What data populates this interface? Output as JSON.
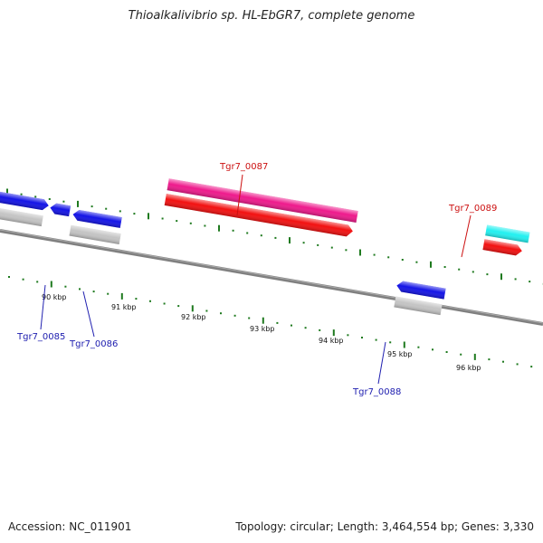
{
  "title": "Thioalkalivibrio sp. HL-EbGR7, complete genome",
  "footer": {
    "accession": "Accession: NC_011901",
    "summary": "Topology: circular; Length: 3,464,554 bp; Genes: 3,330"
  },
  "colors": {
    "backbone": "#808080",
    "tick": "#1f7a1f",
    "gene_blue": "#1414e6",
    "gene_pink": "#ee1a8c",
    "gene_red": "#f21111",
    "gene_gray": "#c4c4c4",
    "gene_cyan": "#22f0f0",
    "gene_olive": "#bdb374",
    "label_blue": "#2020b0",
    "label_red": "#cc1111"
  },
  "scale_labels": [
    "90 kbp",
    "91 kbp",
    "92 kbp",
    "93 kbp",
    "94 kbp",
    "95 kbp",
    "96 kbp"
  ],
  "gene_labels": [
    {
      "name": "Tgr7_0085",
      "color": "blue"
    },
    {
      "name": "Tgr7_0086",
      "color": "blue"
    },
    {
      "name": "Tgr7_0087",
      "color": "red"
    },
    {
      "name": "Tgr7_0088",
      "color": "blue"
    },
    {
      "name": "Tgr7_0089",
      "color": "red"
    }
  ]
}
